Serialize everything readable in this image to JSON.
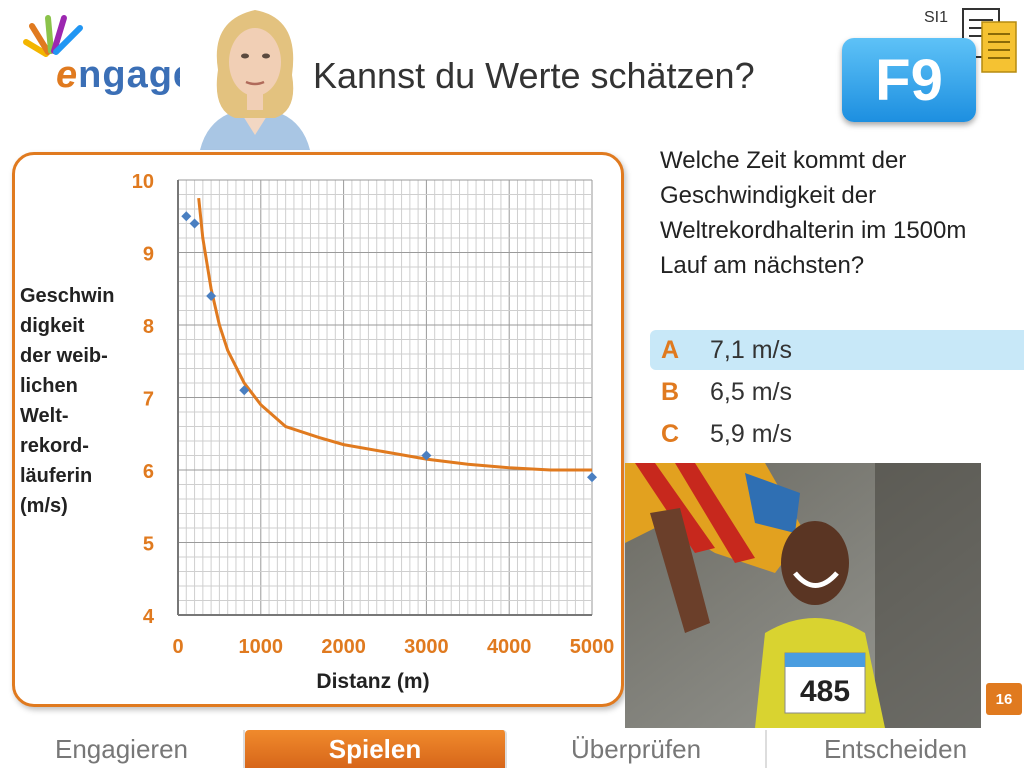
{
  "header": {
    "logo_text": "ngage",
    "logo_initial": "e",
    "title": "Kannst du Werte schätzen?",
    "badge": "F9",
    "level_code": "SI1"
  },
  "question": {
    "text": "Welche Zeit kommt der Geschwindigkeit der Weltrekordhalterin im 1500m Lauf am nächsten?",
    "answers": [
      {
        "letter": "A",
        "text": "7,1 m/s",
        "selected": true
      },
      {
        "letter": "B",
        "text": "6,5 m/s",
        "selected": false
      },
      {
        "letter": "C",
        "text": "5,9 m/s",
        "selected": false
      }
    ]
  },
  "chart_data": {
    "type": "scatter",
    "xlabel": "Distanz (m)",
    "ylabel": "Geschwin digkeit der weib- lichen Welt- rekord- läuferin (m/s)",
    "ylabel_lines": [
      "Geschwin",
      "digkeit",
      "der weib-",
      "lichen",
      "Welt-",
      "rekord-",
      "läuferin",
      "(m/s)"
    ],
    "xlim": [
      0,
      5000
    ],
    "ylim": [
      4,
      10
    ],
    "x_ticks": [
      0,
      1000,
      2000,
      3000,
      4000,
      5000
    ],
    "y_ticks": [
      4,
      5,
      6,
      7,
      8,
      9,
      10
    ],
    "grid": true,
    "series": [
      {
        "points": [
          [
            100,
            9.5
          ],
          [
            200,
            9.4
          ],
          [
            400,
            8.4
          ],
          [
            800,
            7.1
          ],
          [
            3000,
            6.2
          ],
          [
            5000,
            5.9
          ]
        ],
        "color": "#4a7fc1"
      }
    ],
    "trendline": {
      "color": "#e07a1f",
      "points": [
        [
          250,
          9.75
        ],
        [
          300,
          9.2
        ],
        [
          400,
          8.5
        ],
        [
          500,
          8.0
        ],
        [
          600,
          7.65
        ],
        [
          800,
          7.2
        ],
        [
          1000,
          6.9
        ],
        [
          1300,
          6.6
        ],
        [
          1700,
          6.45
        ],
        [
          2000,
          6.35
        ],
        [
          2500,
          6.25
        ],
        [
          3000,
          6.15
        ],
        [
          3500,
          6.08
        ],
        [
          4000,
          6.03
        ],
        [
          4500,
          6.0
        ],
        [
          5000,
          6.0
        ]
      ]
    }
  },
  "page_number": "16",
  "tabs": [
    {
      "label": "Engagieren",
      "active": false
    },
    {
      "label": "Spielen",
      "active": true
    },
    {
      "label": "Überprüfen",
      "active": false
    },
    {
      "label": "Entscheiden",
      "active": false
    }
  ],
  "colors": {
    "accent": "#e07a1f",
    "badge": "#1d8fe0",
    "selected": "#c8e8f8"
  }
}
